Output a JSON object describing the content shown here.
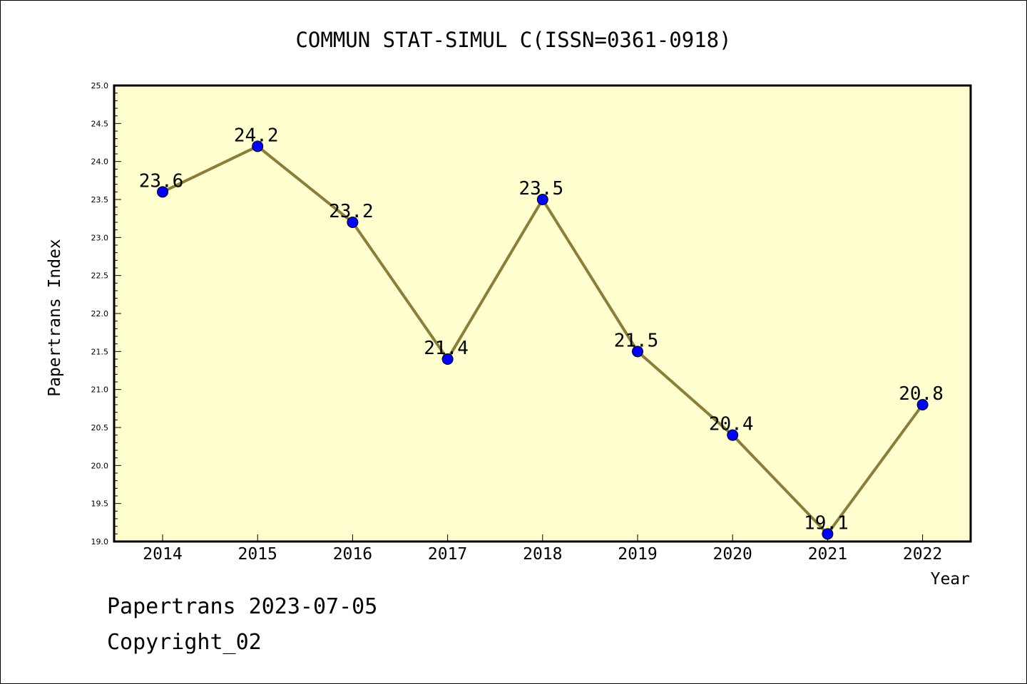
{
  "chart_data": {
    "type": "line",
    "title": "COMMUN STAT-SIMUL C(ISSN=0361-0918)",
    "xlabel": "Year",
    "ylabel": "Papertrans Index",
    "categories": [
      "2014",
      "2015",
      "2016",
      "2017",
      "2018",
      "2019",
      "2020",
      "2021",
      "2022"
    ],
    "series": [
      {
        "values": [
          23.6,
          24.2,
          23.2,
          21.4,
          23.5,
          21.5,
          20.4,
          19.1,
          20.8
        ]
      }
    ],
    "data_labels": [
      "23.6",
      "24.2",
      "23.2",
      "21.4",
      "23.5",
      "21.5",
      "20.4",
      "19.1",
      "20.8"
    ],
    "ylim": [
      19.0,
      25.0
    ],
    "yticks": [
      "19.0",
      "19.5",
      "20.0",
      "20.5",
      "21.0",
      "21.5",
      "22.0",
      "22.5",
      "23.0",
      "23.5",
      "24.0",
      "24.5",
      "25.0"
    ],
    "grid": false,
    "legend": "none",
    "colors": {
      "plot_background": "#ffffd0",
      "line": "#8b7d3a",
      "marker": "#0000ff"
    }
  },
  "footer": {
    "line1": "Papertrans 2023-07-05",
    "line2": "Copyright_02"
  }
}
